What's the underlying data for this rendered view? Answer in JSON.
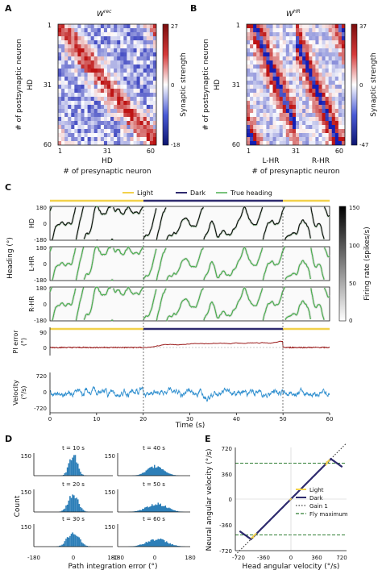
{
  "panels": {
    "A": {
      "letter": "A",
      "title": "W",
      "title_sup": "rec",
      "ylabel": "# of postsynaptic neuron",
      "ylabel_short": "HD",
      "xlabel_short": "HD",
      "xlabel": "# of presynaptic neuron",
      "ticks": [
        "1",
        "31",
        "60"
      ],
      "colorbar": {
        "label": "Synaptic strength",
        "ticks": [
          "27",
          "0",
          "-18"
        ]
      }
    },
    "B": {
      "letter": "B",
      "title": "W",
      "title_sup": "HR",
      "ylabel": "# of postsynaptic neuron",
      "ylabel_short": "HD",
      "xlabel_left": "L-HR",
      "xlabel_right": "R-HR",
      "xlabel": "# of presynaptic neuron",
      "ticks": [
        "1",
        "31",
        "60"
      ],
      "colorbar": {
        "label": "Synaptic strength",
        "ticks": [
          "37",
          "0",
          "-47"
        ]
      }
    },
    "C": {
      "letter": "C",
      "legend": {
        "light": "Light",
        "dark": "Dark",
        "true_heading": "True heading"
      },
      "heading_label": "Heading (°)",
      "rows": [
        "HD",
        "L-HR",
        "R-HR"
      ],
      "heading_ticks": [
        "180",
        "0",
        "-180"
      ],
      "pi_error": {
        "label": "PI error",
        "unit": "(°)",
        "ticks": [
          "90",
          "0"
        ]
      },
      "velocity": {
        "label": "Velocity",
        "unit": "(°/s)",
        "ticks": [
          "720",
          "0",
          "-720"
        ]
      },
      "time_ticks": [
        "0",
        "10",
        "20",
        "30",
        "40",
        "50",
        "60"
      ],
      "xlabel": "Time (s)",
      "colorbar": {
        "label": "Firing rate (spikes/s)",
        "ticks": [
          "150",
          "100",
          "50",
          "0"
        ]
      },
      "dark_interval": [
        20,
        50
      ]
    },
    "D": {
      "letter": "D",
      "ylabel": "Count",
      "xlabel": "Path integration error (°)",
      "count_ticks": [
        "150",
        "0"
      ],
      "x_ticks": [
        "-180",
        "0",
        "180"
      ],
      "histograms": [
        {
          "title": "t = 10 s",
          "center": 0,
          "spread": 18,
          "peak": 160
        },
        {
          "title": "t = 20 s",
          "center": 0,
          "spread": 22,
          "peak": 130
        },
        {
          "title": "t = 30 s",
          "center": 0,
          "spread": 26,
          "peak": 110
        },
        {
          "title": "t = 40 s",
          "center": 10,
          "spread": 40,
          "peak": 70
        },
        {
          "title": "t = 50 s",
          "center": 15,
          "spread": 48,
          "peak": 60
        },
        {
          "title": "t = 60 s",
          "center": 15,
          "spread": 50,
          "peak": 55
        }
      ]
    },
    "E": {
      "letter": "E",
      "ylabel": "Neural angular velocity (°/s)",
      "xlabel": "Head angular velocity (°/s)",
      "y_ticks": [
        "720",
        "360",
        "0",
        "-360",
        "-720"
      ],
      "x_ticks": [
        "-720",
        "-360",
        "0",
        "360",
        "720"
      ],
      "legend": {
        "light": "Light",
        "dark": "Dark",
        "gain": "Gain 1",
        "fly_max": "Fly maximum"
      },
      "fly_maximum": 500
    }
  },
  "colors": {
    "light": "#f2d14b",
    "dark": "#2e2a6e",
    "true_heading": "#4caf50",
    "pi_error": "#9b1c1c",
    "velocity": "#2f8fcf",
    "fly_max": "#2e7d32",
    "gain": "#444444",
    "hist": "#2d7fb8",
    "heat_pos": "#c81e1e",
    "heat_neg": "#1f2bbf"
  }
}
